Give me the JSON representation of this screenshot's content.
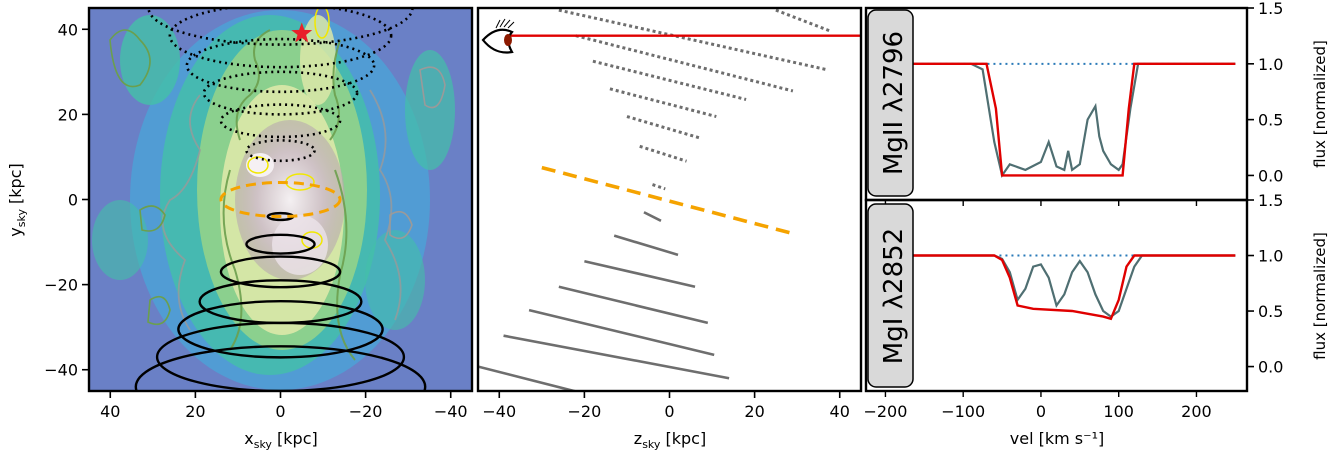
{
  "colors": {
    "background": "#ffffff",
    "spectrum": "#4f6f72",
    "model": "#e00000",
    "continuum": "#2a7ab8",
    "disk_plane": "#f5a300",
    "rings": "#000000",
    "lines": "#6e6e6e",
    "star": "#e8202a"
  },
  "chart_data": [
    {
      "type": "heatmap",
      "xlabel_main": "x",
      "xlabel_sub": "sky",
      "xlabel_unit": "[kpc]",
      "ylabel_main": "y",
      "ylabel_sub": "sky",
      "ylabel_unit": "[kpc]",
      "xlim": [
        45,
        -45
      ],
      "ylim": [
        -45,
        45
      ],
      "xticks": [
        40,
        20,
        0,
        -20,
        -40
      ],
      "yticks": [
        40,
        20,
        0,
        -20,
        -40
      ],
      "star": {
        "x": -5,
        "y": 39
      },
      "solid_ellipses": [
        {
          "cx": 0,
          "cy": -4,
          "rx": 3,
          "ry": 0.8
        },
        {
          "cx": 0,
          "cy": -10.5,
          "rx": 8,
          "ry": 2.2
        },
        {
          "cx": 0,
          "cy": -17,
          "rx": 14,
          "ry": 3.6
        },
        {
          "cx": 0,
          "cy": -24,
          "rx": 19,
          "ry": 5
        },
        {
          "cx": 0,
          "cy": -30.5,
          "rx": 24,
          "ry": 6.6
        },
        {
          "cx": 0,
          "cy": -37,
          "rx": 29,
          "ry": 8
        },
        {
          "cx": 0,
          "cy": -44,
          "rx": 34,
          "ry": 9.5
        }
      ],
      "dotted_ellipses": [
        {
          "cx": 0,
          "cy": 11.5,
          "rx": 8,
          "ry": 2.4
        },
        {
          "cx": 0,
          "cy": 18.5,
          "rx": 14,
          "ry": 3.8
        },
        {
          "cx": 0,
          "cy": 25,
          "rx": 18,
          "ry": 5
        },
        {
          "cx": 0,
          "cy": 31.5,
          "rx": 22,
          "ry": 6.2
        },
        {
          "cx": 0,
          "cy": 38.5,
          "rx": 26,
          "ry": 7.4
        },
        {
          "cx": 0,
          "cy": 45,
          "rx": 31,
          "ry": 8.6
        }
      ],
      "dashed_ellipse": {
        "cx": 0,
        "cy": 0,
        "rx": 14,
        "ry": 4
      }
    },
    {
      "type": "scatter",
      "xlabel_main": "z",
      "xlabel_sub": "sky",
      "xlabel_unit": "[kpc]",
      "xlim": [
        -45,
        45
      ],
      "ylim": [
        -45,
        45
      ],
      "xticks": [
        -40,
        -20,
        0,
        20,
        40
      ],
      "sightline_y": 38.5,
      "disk_plane": [
        [
          -30,
          7.5
        ],
        [
          29,
          -8
        ]
      ],
      "solid_rings": [
        [
          [
            -6,
            -3
          ],
          [
            -2,
            -5
          ]
        ],
        [
          [
            -13,
            -8.5
          ],
          [
            2,
            -13
          ]
        ],
        [
          [
            -20,
            -14.5
          ],
          [
            6,
            -20.5
          ]
        ],
        [
          [
            -26,
            -20.5
          ],
          [
            9,
            -29
          ]
        ],
        [
          [
            -33,
            -26
          ],
          [
            10.5,
            -36.5
          ]
        ],
        [
          [
            -39,
            -32
          ],
          [
            14,
            -42
          ]
        ],
        [
          [
            -48,
            -38.5
          ],
          [
            11,
            -53.5
          ]
        ]
      ],
      "dotted_rings": [
        [
          [
            -4,
            3.5
          ],
          [
            -1,
            2.5
          ]
        ],
        [
          [
            -7,
            12.5
          ],
          [
            4,
            9
          ]
        ],
        [
          [
            -10,
            19.5
          ],
          [
            7,
            14.5
          ]
        ],
        [
          [
            -14,
            26
          ],
          [
            11,
            19.5
          ]
        ],
        [
          [
            -18,
            32.5
          ],
          [
            18,
            23.5
          ]
        ],
        [
          [
            -22,
            38.5
          ],
          [
            29,
            25.5
          ]
        ],
        [
          [
            -26,
            44.5
          ],
          [
            37,
            30.5
          ]
        ],
        [
          [
            25,
            44.5
          ],
          [
            38,
            39.5
          ]
        ]
      ]
    },
    {
      "type": "line",
      "ion_label": "MgII λ2796",
      "ylabel": "flux [normalized]",
      "xlim": [
        -225,
        265
      ],
      "ylim": [
        -0.22,
        1.5
      ],
      "yticks": [
        0.0,
        0.5,
        1.0,
        1.5
      ],
      "continuum": 1.0,
      "model_x": [
        -200,
        -70,
        -58,
        -50,
        105,
        113,
        120,
        250
      ],
      "model_y": [
        1.0,
        1.0,
        0.6,
        0.0,
        0.0,
        0.6,
        1.0,
        1.0
      ],
      "observed_x": [
        -200,
        -90,
        -75,
        -60,
        -50,
        -40,
        -20,
        0,
        10,
        20,
        30,
        35,
        40,
        50,
        60,
        70,
        75,
        80,
        90,
        100,
        105,
        115,
        125,
        150,
        200,
        250
      ],
      "observed_y": [
        1.0,
        1.0,
        0.95,
        0.3,
        0.0,
        0.1,
        0.05,
        0.12,
        0.3,
        0.08,
        0.05,
        0.22,
        0.05,
        0.1,
        0.5,
        0.62,
        0.35,
        0.22,
        0.1,
        0.05,
        0.1,
        0.6,
        1.0,
        1.0,
        1.0,
        1.0
      ]
    },
    {
      "type": "line",
      "ion_label": "MgI λ2852",
      "ylabel": "flux [normalized]",
      "xlabel_main": "vel",
      "xlabel_unit": "[km s⁻¹]",
      "xlim": [
        -225,
        265
      ],
      "ylim": [
        -0.22,
        1.5
      ],
      "xticks": [
        -200,
        -100,
        0,
        100,
        200
      ],
      "yticks": [
        0.0,
        0.5,
        1.0,
        1.5
      ],
      "continuum": 1.0,
      "model_x": [
        -200,
        -60,
        -50,
        -40,
        -30,
        -10,
        40,
        80,
        90,
        100,
        110,
        120,
        250
      ],
      "model_y": [
        1.0,
        1.0,
        0.96,
        0.8,
        0.55,
        0.52,
        0.5,
        0.45,
        0.43,
        0.6,
        0.9,
        1.0,
        1.0
      ],
      "observed_x": [
        -200,
        -60,
        -50,
        -40,
        -30,
        -20,
        -10,
        0,
        10,
        20,
        30,
        40,
        50,
        60,
        70,
        80,
        90,
        100,
        110,
        120,
        130,
        150,
        200,
        250
      ],
      "observed_y": [
        1.0,
        1.0,
        0.97,
        0.85,
        0.6,
        0.7,
        0.9,
        0.92,
        0.8,
        0.55,
        0.65,
        0.85,
        0.95,
        0.85,
        0.65,
        0.5,
        0.45,
        0.5,
        0.7,
        0.9,
        1.0,
        1.0,
        1.0,
        1.0
      ]
    }
  ]
}
